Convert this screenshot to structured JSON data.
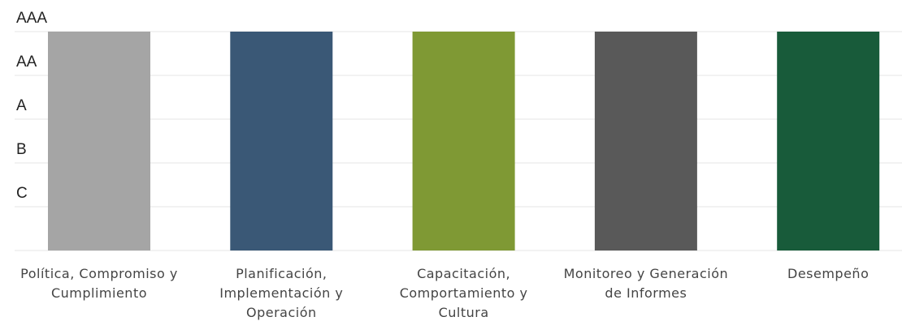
{
  "chart_data": {
    "type": "bar",
    "categories": [
      "Política, Compromiso y Cumplimiento",
      "Planificación, Implementación y Operación",
      "Capacitación, Comportamiento y Cultura",
      "Monitoreo y Generación de Informes",
      "Desempeño"
    ],
    "values": [
      5,
      5,
      5,
      5,
      5
    ],
    "colors": [
      "#a5a5a5",
      "#3a5876",
      "#7f9934",
      "#595959",
      "#185b3a"
    ],
    "ylim": [
      0,
      5
    ],
    "yticks": [
      {
        "value": 1,
        "label": "C"
      },
      {
        "value": 2,
        "label": "B"
      },
      {
        "value": 3,
        "label": "A"
      },
      {
        "value": 4,
        "label": "AA"
      },
      {
        "value": 5,
        "label": "AAA"
      }
    ],
    "grid": true
  }
}
